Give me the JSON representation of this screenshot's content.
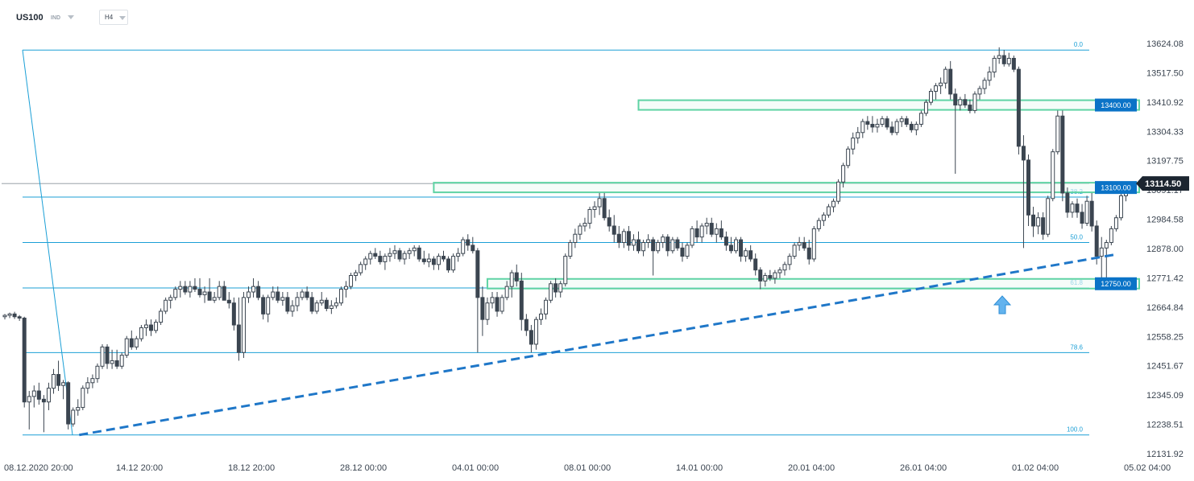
{
  "toolbar": {
    "symbol": "US100",
    "instrument_type": "IND",
    "timeframe": "H4"
  },
  "colors": {
    "fib_line": "#1b9fd6",
    "trendline": "#1f77c8",
    "zone_border": "#5fd3a4",
    "zone_fill": "#eefaf5",
    "candle": "#3b4550",
    "price_tag_dark": "#1c2530",
    "level_tag_blue": "#0b73c7",
    "arrow": "#63b3ee"
  },
  "chart_data": {
    "type": "candlestick",
    "symbol": "US100",
    "timeframe": "H4",
    "y_ticks": [
      "13624.08",
      "13517.50",
      "13410.92",
      "13304.33",
      "13197.75",
      "13091.17",
      "12984.58",
      "12878.00",
      "12771.42",
      "12664.84",
      "12558.25",
      "12451.67",
      "12345.09",
      "12238.51",
      "12131.92"
    ],
    "ylim": [
      12131.92,
      13660
    ],
    "x_ticks": [
      "08.12.2020  20:00",
      "14.12  20:00",
      "18.12  20:00",
      "28.12  00:00",
      "04.01  00:00",
      "08.01  00:00",
      "14.01  00:00",
      "20.01  04:00",
      "26.01  04:00",
      "01.02  04:00",
      "05.02  04:00"
    ],
    "last_price": "13114.50",
    "fibonacci": {
      "high": 13600,
      "low": 12200,
      "levels": [
        {
          "label": "0.0",
          "ratio": 0.0
        },
        {
          "label": "38.2",
          "ratio": 0.382
        },
        {
          "label": "50.0",
          "ratio": 0.5
        },
        {
          "label": "61.8",
          "ratio": 0.618
        },
        {
          "label": "78.6",
          "ratio": 0.786
        },
        {
          "label": "100.0",
          "ratio": 1.0
        }
      ]
    },
    "zones": [
      {
        "label": "13400.00",
        "price": 13400,
        "start_index": 130
      },
      {
        "label": "13100.00",
        "price": 13100,
        "start_index": 88
      },
      {
        "label": "12750.00",
        "price": 12750,
        "start_index": 99
      }
    ],
    "trendline": {
      "from": {
        "index": 6,
        "price": 12200
      },
      "to": {
        "index": 226,
        "price": 12855
      }
    },
    "arrow": {
      "index": 162,
      "direction": "up"
    },
    "candles": [
      [
        12630,
        12640,
        12620,
        12635
      ],
      [
        12635,
        12645,
        12625,
        12640
      ],
      [
        12640,
        12648,
        12622,
        12630
      ],
      [
        12630,
        12636,
        12615,
        12625
      ],
      [
        12625,
        12630,
        12300,
        12320
      ],
      [
        12320,
        12360,
        12220,
        12340
      ],
      [
        12340,
        12380,
        12300,
        12360
      ],
      [
        12360,
        12390,
        12310,
        12330
      ],
      [
        12330,
        12345,
        12210,
        12320
      ],
      [
        12320,
        12390,
        12290,
        12370
      ],
      [
        12370,
        12440,
        12350,
        12420
      ],
      [
        12420,
        12470,
        12360,
        12380
      ],
      [
        12380,
        12400,
        12330,
        12390
      ],
      [
        12390,
        12395,
        12220,
        12240
      ],
      [
        12240,
        12300,
        12230,
        12290
      ],
      [
        12290,
        12330,
        12270,
        12300
      ],
      [
        12300,
        12380,
        12290,
        12370
      ],
      [
        12370,
        12410,
        12350,
        12390
      ],
      [
        12390,
        12420,
        12370,
        12405
      ],
      [
        12405,
        12460,
        12390,
        12450
      ],
      [
        12450,
        12530,
        12440,
        12520
      ],
      [
        12520,
        12530,
        12440,
        12460
      ],
      [
        12460,
        12510,
        12440,
        12470
      ],
      [
        12470,
        12510,
        12440,
        12450
      ],
      [
        12450,
        12500,
        12440,
        12490
      ],
      [
        12490,
        12560,
        12480,
        12550
      ],
      [
        12550,
        12580,
        12510,
        12520
      ],
      [
        12520,
        12560,
        12510,
        12550
      ],
      [
        12550,
        12600,
        12540,
        12590
      ],
      [
        12590,
        12620,
        12560,
        12600
      ],
      [
        12600,
        12620,
        12560,
        12580
      ],
      [
        12580,
        12620,
        12570,
        12610
      ],
      [
        12610,
        12660,
        12600,
        12650
      ],
      [
        12650,
        12700,
        12640,
        12690
      ],
      [
        12690,
        12710,
        12660,
        12700
      ],
      [
        12700,
        12740,
        12690,
        12730
      ],
      [
        12730,
        12760,
        12700,
        12740
      ],
      [
        12740,
        12760,
        12710,
        12720
      ],
      [
        12720,
        12760,
        12700,
        12740
      ],
      [
        12740,
        12770,
        12720,
        12730
      ],
      [
        12730,
        12770,
        12700,
        12710
      ],
      [
        12710,
        12740,
        12680,
        12720
      ],
      [
        12720,
        12770,
        12700,
        12690
      ],
      [
        12690,
        12720,
        12680,
        12700
      ],
      [
        12700,
        12760,
        12690,
        12740
      ],
      [
        12740,
        12760,
        12690,
        12690
      ],
      [
        12690,
        12720,
        12660,
        12680
      ],
      [
        12680,
        12700,
        12580,
        12600
      ],
      [
        12600,
        12700,
        12470,
        12500
      ],
      [
        12500,
        12720,
        12480,
        12700
      ],
      [
        12700,
        12740,
        12680,
        12720
      ],
      [
        12720,
        12770,
        12700,
        12740
      ],
      [
        12740,
        12760,
        12690,
        12700
      ],
      [
        12700,
        12710,
        12620,
        12640
      ],
      [
        12640,
        12710,
        12610,
        12700
      ],
      [
        12700,
        12740,
        12690,
        12720
      ],
      [
        12720,
        12740,
        12680,
        12690
      ],
      [
        12690,
        12720,
        12670,
        12700
      ],
      [
        12700,
        12720,
        12640,
        12650
      ],
      [
        12650,
        12690,
        12630,
        12670
      ],
      [
        12670,
        12720,
        12650,
        12700
      ],
      [
        12700,
        12730,
        12690,
        12720
      ],
      [
        12720,
        12740,
        12690,
        12700
      ],
      [
        12700,
        12720,
        12640,
        12650
      ],
      [
        12650,
        12690,
        12640,
        12680
      ],
      [
        12680,
        12720,
        12670,
        12690
      ],
      [
        12690,
        12700,
        12650,
        12660
      ],
      [
        12660,
        12690,
        12640,
        12670
      ],
      [
        12670,
        12700,
        12660,
        12680
      ],
      [
        12680,
        12740,
        12670,
        12730
      ],
      [
        12730,
        12760,
        12700,
        12740
      ],
      [
        12740,
        12790,
        12730,
        12780
      ],
      [
        12780,
        12800,
        12760,
        12790
      ],
      [
        12790,
        12830,
        12780,
        12820
      ],
      [
        12820,
        12850,
        12800,
        12840
      ],
      [
        12840,
        12870,
        12820,
        12860
      ],
      [
        12860,
        12880,
        12840,
        12850
      ],
      [
        12850,
        12870,
        12820,
        12830
      ],
      [
        12830,
        12860,
        12800,
        12850
      ],
      [
        12850,
        12880,
        12830,
        12860
      ],
      [
        12860,
        12890,
        12840,
        12870
      ],
      [
        12870,
        12880,
        12830,
        12840
      ],
      [
        12840,
        12870,
        12820,
        12860
      ],
      [
        12860,
        12880,
        12840,
        12870
      ],
      [
        12870,
        12890,
        12850,
        12880
      ],
      [
        12880,
        12890,
        12830,
        12840
      ],
      [
        12840,
        12870,
        12820,
        12830
      ],
      [
        12830,
        12860,
        12810,
        12840
      ],
      [
        12840,
        12850,
        12800,
        12820
      ],
      [
        12820,
        12860,
        12800,
        12850
      ],
      [
        12850,
        12870,
        12830,
        12840
      ],
      [
        12840,
        12850,
        12790,
        12800
      ],
      [
        12800,
        12860,
        12790,
        12850
      ],
      [
        12850,
        12880,
        12830,
        12860
      ],
      [
        12860,
        12920,
        12850,
        12910
      ],
      [
        12910,
        12930,
        12870,
        12890
      ],
      [
        12890,
        12920,
        12860,
        12870
      ],
      [
        12870,
        12880,
        12500,
        12700
      ],
      [
        12700,
        12740,
        12560,
        12620
      ],
      [
        12620,
        12700,
        12600,
        12680
      ],
      [
        12680,
        12720,
        12660,
        12700
      ],
      [
        12700,
        12720,
        12630,
        12650
      ],
      [
        12650,
        12710,
        12640,
        12700
      ],
      [
        12700,
        12760,
        12690,
        12740
      ],
      [
        12740,
        12800,
        12700,
        12790
      ],
      [
        12790,
        12820,
        12740,
        12760
      ],
      [
        12760,
        12790,
        12580,
        12620
      ],
      [
        12620,
        12640,
        12560,
        12580
      ],
      [
        12580,
        12600,
        12500,
        12530
      ],
      [
        12530,
        12630,
        12510,
        12620
      ],
      [
        12620,
        12660,
        12600,
        12640
      ],
      [
        12640,
        12700,
        12620,
        12690
      ],
      [
        12690,
        12760,
        12680,
        12750
      ],
      [
        12750,
        12770,
        12700,
        12720
      ],
      [
        12720,
        12760,
        12700,
        12750
      ],
      [
        12750,
        12860,
        12740,
        12850
      ],
      [
        12850,
        12910,
        12840,
        12900
      ],
      [
        12900,
        12950,
        12880,
        12930
      ],
      [
        12930,
        12970,
        12910,
        12960
      ],
      [
        12960,
        12990,
        12940,
        12970
      ],
      [
        12970,
        13030,
        12950,
        13020
      ],
      [
        13020,
        13050,
        12990,
        13030
      ],
      [
        13030,
        13080,
        13000,
        13060
      ],
      [
        13060,
        13080,
        12980,
        12990
      ],
      [
        12990,
        13020,
        12940,
        12960
      ],
      [
        12960,
        13000,
        12900,
        12930
      ],
      [
        12930,
        12960,
        12880,
        12900
      ],
      [
        12900,
        12950,
        12880,
        12940
      ],
      [
        12940,
        12960,
        12870,
        12890
      ],
      [
        12890,
        12930,
        12870,
        12910
      ],
      [
        12910,
        12940,
        12860,
        12870
      ],
      [
        12870,
        12910,
        12850,
        12900
      ],
      [
        12900,
        12930,
        12880,
        12910
      ],
      [
        12910,
        12920,
        12780,
        12870
      ],
      [
        12870,
        12910,
        12860,
        12900
      ],
      [
        12900,
        12930,
        12880,
        12920
      ],
      [
        12920,
        12930,
        12850,
        12870
      ],
      [
        12870,
        12920,
        12860,
        12910
      ],
      [
        12910,
        12920,
        12870,
        12880
      ],
      [
        12880,
        12900,
        12830,
        12850
      ],
      [
        12850,
        12900,
        12840,
        12890
      ],
      [
        12890,
        12960,
        12880,
        12950
      ],
      [
        12950,
        12980,
        12900,
        12920
      ],
      [
        12920,
        12970,
        12900,
        12960
      ],
      [
        12960,
        12990,
        12930,
        12970
      ],
      [
        12970,
        12990,
        12920,
        12930
      ],
      [
        12930,
        12970,
        12900,
        12950
      ],
      [
        12950,
        12980,
        12910,
        12920
      ],
      [
        12920,
        12940,
        12870,
        12890
      ],
      [
        12890,
        12920,
        12860,
        12870
      ],
      [
        12870,
        12920,
        12860,
        12910
      ],
      [
        12910,
        12920,
        12830,
        12850
      ],
      [
        12850,
        12880,
        12830,
        12870
      ],
      [
        12870,
        12890,
        12830,
        12840
      ],
      [
        12840,
        12860,
        12780,
        12800
      ],
      [
        12800,
        12810,
        12730,
        12760
      ],
      [
        12760,
        12790,
        12740,
        12780
      ],
      [
        12780,
        12800,
        12760,
        12770
      ],
      [
        12770,
        12800,
        12750,
        12790
      ],
      [
        12790,
        12810,
        12770,
        12800
      ],
      [
        12800,
        12830,
        12780,
        12820
      ],
      [
        12820,
        12860,
        12800,
        12850
      ],
      [
        12850,
        12900,
        12840,
        12890
      ],
      [
        12890,
        12920,
        12870,
        12900
      ],
      [
        12900,
        12920,
        12870,
        12880
      ],
      [
        12880,
        12910,
        12820,
        12840
      ],
      [
        12840,
        12960,
        12830,
        12950
      ],
      [
        12950,
        12990,
        12940,
        12980
      ],
      [
        12980,
        13010,
        12960,
        13000
      ],
      [
        13000,
        13040,
        12990,
        13030
      ],
      [
        13030,
        13060,
        13010,
        13050
      ],
      [
        13050,
        13130,
        13040,
        13120
      ],
      [
        13120,
        13190,
        13100,
        13180
      ],
      [
        13180,
        13250,
        13170,
        13240
      ],
      [
        13240,
        13300,
        13220,
        13280
      ],
      [
        13280,
        13320,
        13260,
        13300
      ],
      [
        13300,
        13350,
        13280,
        13340
      ],
      [
        13340,
        13360,
        13310,
        13330
      ],
      [
        13330,
        13360,
        13300,
        13320
      ],
      [
        13320,
        13350,
        13300,
        13330
      ],
      [
        13330,
        13360,
        13320,
        13350
      ],
      [
        13350,
        13360,
        13310,
        13320
      ],
      [
        13320,
        13340,
        13290,
        13300
      ],
      [
        13300,
        13350,
        13290,
        13340
      ],
      [
        13340,
        13360,
        13320,
        13350
      ],
      [
        13350,
        13360,
        13320,
        13330
      ],
      [
        13330,
        13340,
        13300,
        13310
      ],
      [
        13310,
        13340,
        13290,
        13330
      ],
      [
        13330,
        13380,
        13320,
        13370
      ],
      [
        13370,
        13420,
        13360,
        13410
      ],
      [
        13410,
        13460,
        13400,
        13450
      ],
      [
        13450,
        13480,
        13420,
        13470
      ],
      [
        13470,
        13500,
        13440,
        13480
      ],
      [
        13480,
        13540,
        13460,
        13530
      ],
      [
        13530,
        13560,
        13420,
        13440
      ],
      [
        13440,
        13460,
        13150,
        13400
      ],
      [
        13400,
        13430,
        13380,
        13420
      ],
      [
        13420,
        13440,
        13390,
        13400
      ],
      [
        13400,
        13420,
        13370,
        13380
      ],
      [
        13380,
        13450,
        13370,
        13440
      ],
      [
        13440,
        13470,
        13420,
        13460
      ],
      [
        13460,
        13500,
        13440,
        13490
      ],
      [
        13490,
        13540,
        13470,
        13520
      ],
      [
        13520,
        13580,
        13500,
        13570
      ],
      [
        13570,
        13610,
        13550,
        13580
      ],
      [
        13580,
        13600,
        13540,
        13550
      ],
      [
        13550,
        13590,
        13540,
        13570
      ],
      [
        13570,
        13580,
        13520,
        13530
      ],
      [
        13530,
        13540,
        13220,
        13250
      ],
      [
        13250,
        13290,
        12880,
        13200
      ],
      [
        13200,
        13220,
        12960,
        13000
      ],
      [
        13000,
        13030,
        12920,
        12960
      ],
      [
        12960,
        13010,
        12930,
        12990
      ],
      [
        12990,
        13010,
        12910,
        12930
      ],
      [
        12930,
        13070,
        12920,
        13060
      ],
      [
        13060,
        13240,
        13050,
        13230
      ],
      [
        13230,
        13380,
        13220,
        13360
      ],
      [
        13360,
        13380,
        13050,
        13080
      ],
      [
        13080,
        13100,
        12990,
        13010
      ],
      [
        13010,
        13050,
        12990,
        13040
      ],
      [
        13040,
        13060,
        12990,
        13010
      ],
      [
        13010,
        13040,
        12950,
        12970
      ],
      [
        12970,
        13070,
        12960,
        13050
      ],
      [
        13050,
        13080,
        12940,
        12960
      ],
      [
        12960,
        12980,
        12820,
        12850
      ],
      [
        12850,
        12920,
        12770,
        12880
      ],
      [
        12880,
        12910,
        12760,
        12900
      ],
      [
        12900,
        12960,
        12890,
        12950
      ],
      [
        12950,
        13000,
        12940,
        12990
      ],
      [
        12990,
        13090,
        12980,
        13070
      ],
      [
        13070,
        13110,
        13050,
        13100
      ],
      [
        13100,
        13120,
        13080,
        13114.5
      ]
    ]
  }
}
